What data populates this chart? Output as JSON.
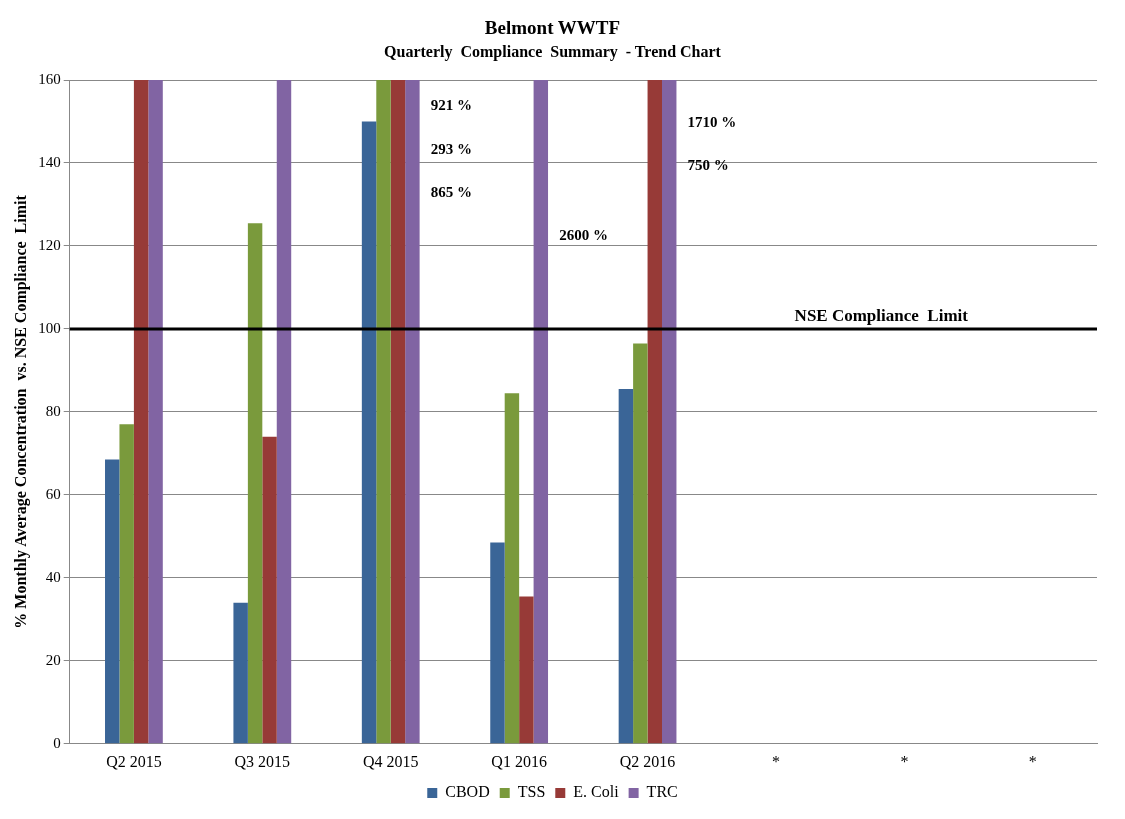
{
  "chart_data": {
    "type": "bar",
    "title": "Belmont WWTF",
    "subtitle": "Quarterly  Compliance  Summary  - Trend Chart",
    "ylabel": "% Monthly Average Concentration  vs. NSE Compliance  Limit",
    "categories": [
      "Q2 2015",
      "Q3 2015",
      "Q4 2015",
      "Q1 2016",
      "Q2 2016",
      "*",
      "*",
      "*"
    ],
    "series": [
      {
        "name": "CBOD",
        "color": "#3a6597",
        "values": [
          68.5,
          34,
          150,
          48.5,
          85.5,
          null,
          null,
          null
        ]
      },
      {
        "name": "TSS",
        "color": "#7a9a3c",
        "values": [
          77,
          125.5,
          160,
          84.5,
          96.5,
          null,
          null,
          null
        ]
      },
      {
        "name": "E. Coli",
        "color": "#973a37",
        "values": [
          160,
          74,
          160,
          35.5,
          160,
          null,
          null,
          null
        ]
      },
      {
        "name": "TRC",
        "color": "#8164a3",
        "values": [
          160,
          160,
          160,
          160,
          160,
          null,
          null,
          null
        ]
      }
    ],
    "ylim": [
      0,
      160
    ],
    "yticks": [
      0,
      20,
      40,
      60,
      80,
      100,
      120,
      140,
      160
    ],
    "grid": "y",
    "legend": "bottom",
    "ref_lines": [
      {
        "axis": "y",
        "value": 100,
        "label": "NSE Compliance  Limit",
        "color": "#000000"
      }
    ],
    "annotations": [
      "921 %",
      "293 %",
      "865 %",
      "2600 %",
      "1710 %",
      "750 %"
    ]
  }
}
